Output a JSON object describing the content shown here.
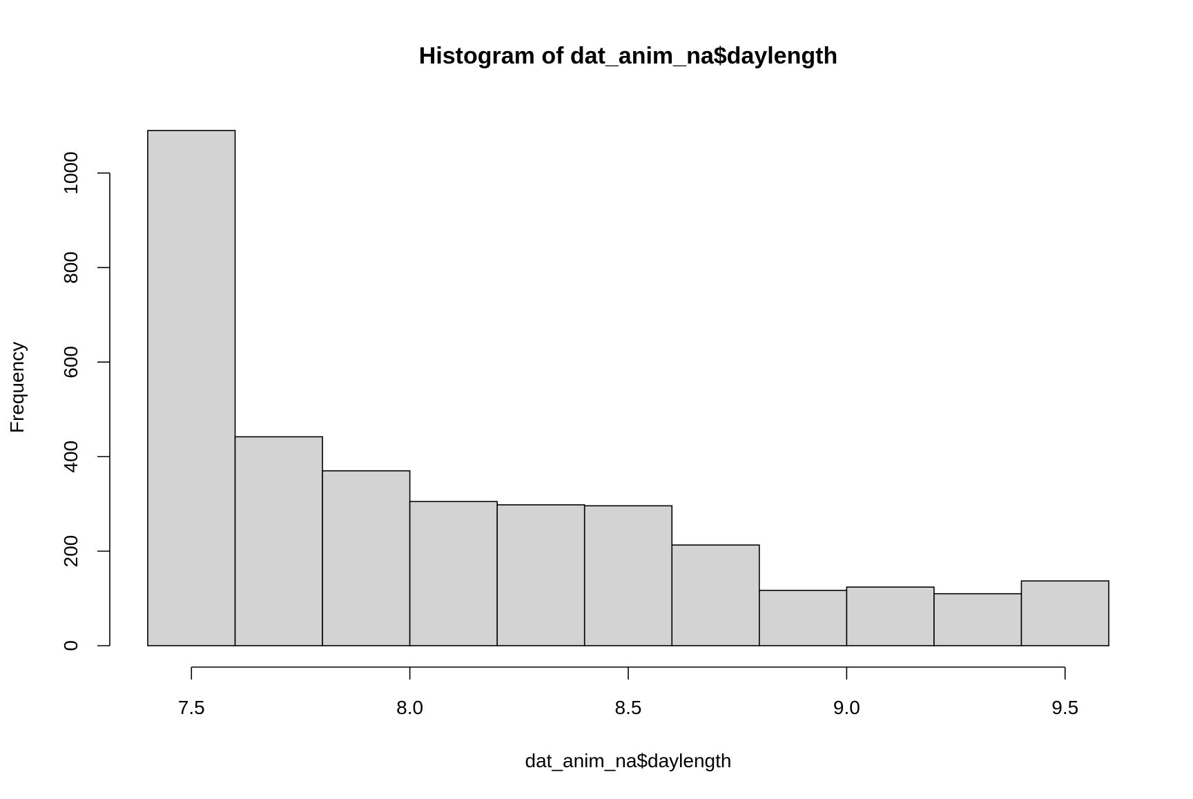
{
  "chart_data": {
    "type": "bar",
    "title": "Histogram of dat_anim_na$daylength",
    "xlabel": "dat_anim_na$daylength",
    "ylabel": "Frequency",
    "bin_edges": [
      7.4,
      7.6,
      7.8,
      8.0,
      8.2,
      8.4,
      8.6,
      8.8,
      9.0,
      9.2,
      9.4,
      9.6
    ],
    "values": [
      1090,
      442,
      370,
      305,
      298,
      296,
      213,
      117,
      124,
      110,
      137
    ],
    "xlim": [
      7.4,
      9.6
    ],
    "ylim": [
      0,
      1090
    ],
    "x_ticks": [
      7.5,
      8.0,
      8.5,
      9.0,
      9.5
    ],
    "x_tick_labels": [
      "7.5",
      "8.0",
      "8.5",
      "9.0",
      "9.5"
    ],
    "y_ticks": [
      0,
      200,
      400,
      600,
      800,
      1000
    ],
    "y_tick_labels": [
      "0",
      "200",
      "400",
      "600",
      "800",
      "1000"
    ],
    "bar_fill": "#d3d3d3",
    "bar_stroke": "#000000",
    "grid": false,
    "legend": "none"
  }
}
